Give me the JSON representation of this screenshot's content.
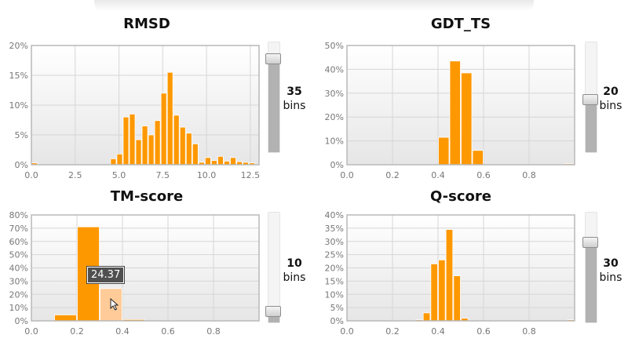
{
  "chart_data": [
    {
      "type": "bar",
      "title": "RMSD",
      "xlabel": "",
      "ylabel": "",
      "xlim": [
        0,
        13
      ],
      "ylim": [
        0,
        20
      ],
      "xticks": [
        "0.0",
        "2.5",
        "5.0",
        "7.5",
        "10.0",
        "12.5"
      ],
      "yticks": [
        "0%",
        "5%",
        "10%",
        "15%",
        "20%"
      ],
      "grid": true,
      "bins": "35",
      "bins_unit": "bins",
      "bin_width": 0.36,
      "x": [
        0.0,
        4.5,
        4.86,
        5.22,
        5.58,
        5.94,
        6.3,
        6.66,
        7.02,
        7.38,
        7.74,
        8.1,
        8.46,
        8.82,
        9.18,
        9.54,
        9.9,
        10.26,
        10.62,
        10.98,
        11.34,
        11.7,
        12.06,
        12.42
      ],
      "values": [
        0.3,
        1.0,
        1.8,
        8.0,
        8.5,
        4.2,
        6.5,
        5.0,
        7.4,
        12.0,
        15.5,
        8.3,
        6.3,
        5.3,
        3.5,
        0.4,
        1.2,
        0.7,
        1.4,
        0.6,
        1.2,
        0.5,
        0.4,
        0.3
      ]
    },
    {
      "type": "bar",
      "title": "GDT_TS",
      "xlabel": "",
      "ylabel": "",
      "xlim": [
        0,
        1
      ],
      "ylim": [
        0,
        50
      ],
      "xticks": [
        "0.0",
        "0.2",
        "0.4",
        "0.6",
        "0.8"
      ],
      "yticks": [
        "0%",
        "10%",
        "20%",
        "30%",
        "40%",
        "50%"
      ],
      "grid": true,
      "bins": "20",
      "bins_unit": "bins",
      "bin_width": 0.05,
      "x": [
        0.4,
        0.45,
        0.5,
        0.55,
        0.95
      ],
      "values": [
        11.5,
        43.5,
        38.5,
        6.0,
        0.4
      ]
    },
    {
      "type": "bar",
      "title": "TM-score",
      "xlabel": "",
      "ylabel": "",
      "xlim": [
        0,
        1
      ],
      "ylim": [
        0,
        80
      ],
      "xticks": [
        "0.0",
        "0.2",
        "0.4",
        "0.6",
        "0.8"
      ],
      "yticks": [
        "0%",
        "10%",
        "20%",
        "30%",
        "40%",
        "50%",
        "60%",
        "70%",
        "80%"
      ],
      "grid": true,
      "bins": "10",
      "bins_unit": "bins",
      "bin_width": 0.1,
      "x": [
        0.1,
        0.2,
        0.3,
        0.4
      ],
      "values": [
        4.5,
        71.0,
        24.37,
        1.0
      ],
      "highlighted_index": 2,
      "tooltip": "24.37"
    },
    {
      "type": "bar",
      "title": "Q-score",
      "xlabel": "",
      "ylabel": "",
      "xlim": [
        0,
        1
      ],
      "ylim": [
        0,
        40
      ],
      "xticks": [
        "0.0",
        "0.2",
        "0.4",
        "0.6",
        "0.8"
      ],
      "yticks": [
        "0%",
        "5%",
        "10%",
        "15%",
        "20%",
        "25%",
        "30%",
        "35%",
        "40%"
      ],
      "grid": true,
      "bins": "30",
      "bins_unit": "bins",
      "bin_width": 0.0333,
      "x": [
        0.3,
        0.3333,
        0.3667,
        0.4,
        0.4333,
        0.4667,
        0.5,
        0.9667
      ],
      "values": [
        0.4,
        3.0,
        21.5,
        23.0,
        34.5,
        17.0,
        1.0,
        0.4
      ]
    }
  ],
  "sliders": [
    {
      "level_fraction": 0.85
    },
    {
      "level_fraction": 0.48
    },
    {
      "level_fraction": 0.1
    },
    {
      "level_fraction": 0.73
    }
  ],
  "colors": {
    "bar": "#fe9800",
    "bar_highlight": "#ffcc99",
    "plot_bg_top": "#ffffff",
    "plot_bg_bottom": "#e6e6e6",
    "grid": "#d6d6d6",
    "frame": "#b8b8b8"
  }
}
